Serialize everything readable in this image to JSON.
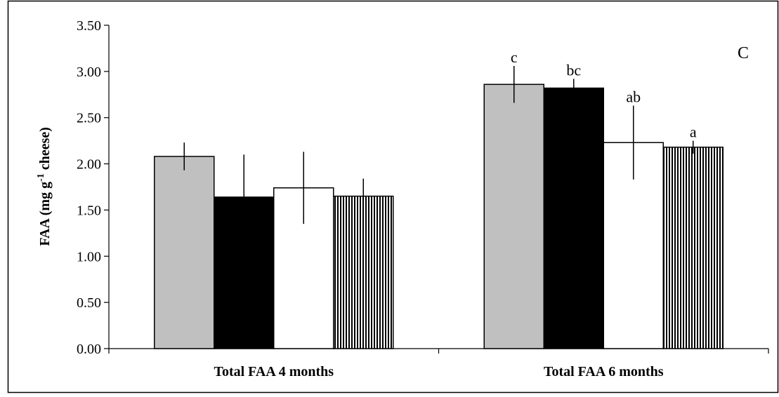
{
  "chart_data": {
    "type": "bar",
    "panel_label": "C",
    "ylabel_parts": [
      "FAA (mg g",
      "-1",
      " cheese)"
    ],
    "ylim": [
      0,
      3.5
    ],
    "yticks": [
      "0.00",
      "0.50",
      "1.00",
      "1.50",
      "2.00",
      "2.50",
      "3.00",
      "3.50"
    ],
    "categories": [
      "Total FAA 4 months",
      "Total FAA 6 months"
    ],
    "series": [
      {
        "fill": "gray",
        "values": [
          2.08,
          2.86
        ],
        "errors": [
          0.15,
          0.2
        ],
        "sig": [
          "",
          "c"
        ]
      },
      {
        "fill": "black",
        "values": [
          1.64,
          2.82
        ],
        "errors": [
          0.46,
          0.1
        ],
        "sig": [
          "",
          "bc"
        ]
      },
      {
        "fill": "white",
        "values": [
          1.74,
          2.23
        ],
        "errors": [
          0.39,
          0.4
        ],
        "sig": [
          "",
          "ab"
        ]
      },
      {
        "fill": "vertical-stripes",
        "values": [
          1.65,
          2.18
        ],
        "errors": [
          0.19,
          0.07
        ],
        "sig": [
          "",
          "a"
        ]
      }
    ],
    "grid": false,
    "legend": "none"
  },
  "colors": {
    "gray": "#c0c0c0",
    "black": "#000000",
    "white": "#ffffff",
    "stripe": "#000000"
  }
}
